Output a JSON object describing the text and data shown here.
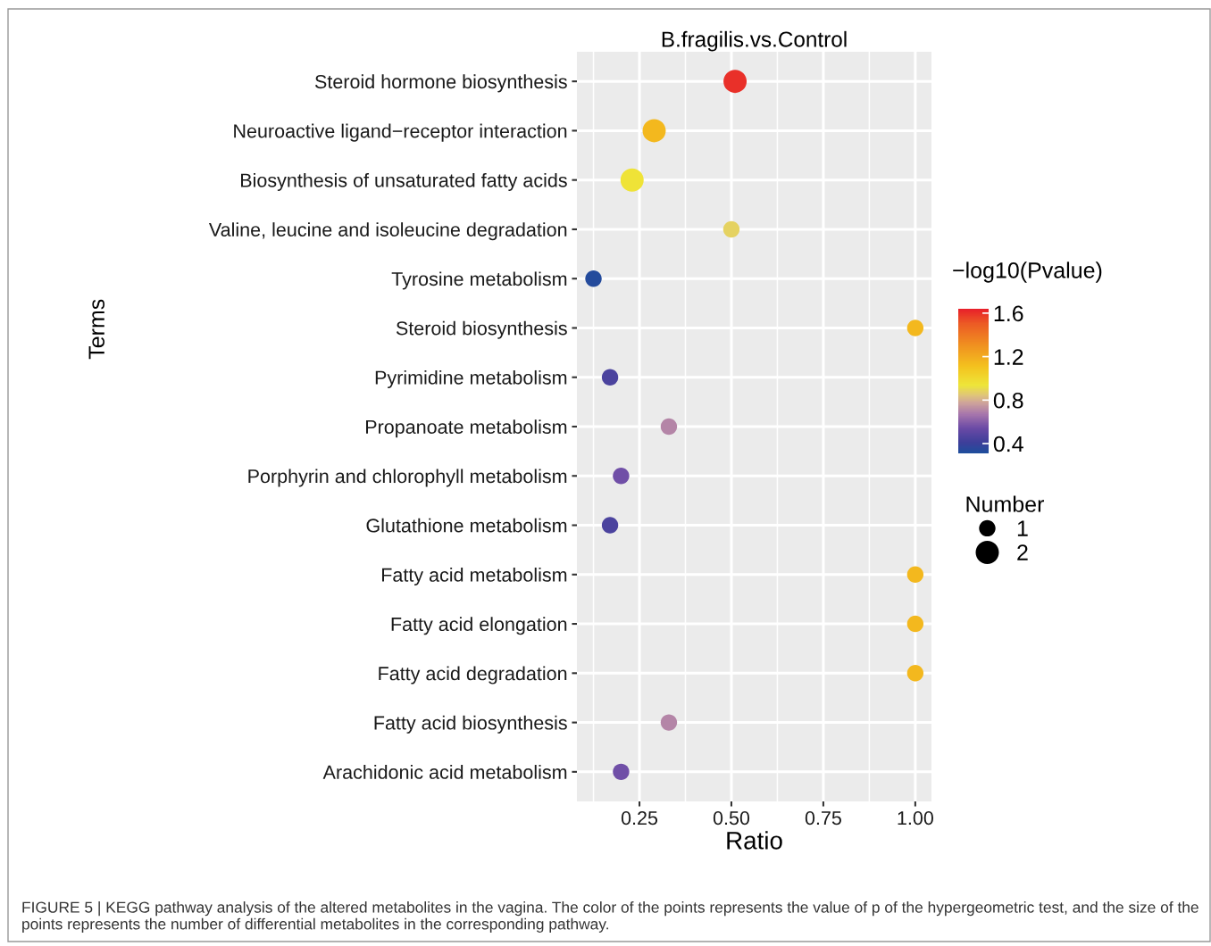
{
  "chart_data": {
    "type": "bubble",
    "orientation": "horizontal",
    "title": "B.fragilis.vs.Control",
    "xlabel": "Ratio",
    "ylabel": "Terms",
    "clabel": "−log10(Pvalue)",
    "legend_title": "Number",
    "categories": [
      "Steroid hormone biosynthesis",
      "Neuroactive ligand−receptor interaction",
      "Biosynthesis of unsaturated fatty acids",
      "Valine, leucine and isoleucine degradation",
      "Tyrosine metabolism",
      "Steroid biosynthesis",
      "Pyrimidine metabolism",
      "Propanoate metabolism",
      "Porphyrin and chlorophyll metabolism",
      "Glutathione metabolism",
      "Fatty acid metabolism",
      "Fatty acid elongation",
      "Fatty acid degradation",
      "Fatty acid biosynthesis",
      "Arachidonic acid metabolism"
    ],
    "values": [
      0.51,
      0.29,
      0.23,
      0.5,
      0.125,
      1.0,
      0.17,
      0.33,
      0.2,
      0.17,
      1.0,
      1.0,
      1.0,
      0.33,
      0.2
    ],
    "sizes": [
      2,
      2,
      2,
      1,
      1,
      1,
      1,
      1,
      1,
      1,
      1,
      1,
      1,
      1,
      1
    ],
    "cvalues": [
      1.6,
      1.15,
      0.95,
      0.88,
      0.33,
      1.15,
      0.45,
      0.7,
      0.55,
      0.45,
      1.15,
      1.15,
      1.15,
      0.7,
      0.55
    ],
    "size_legend": [
      1,
      2
    ],
    "xlim": [
      0.08,
      1.044
    ],
    "xticks": [
      {
        "value": 0.25,
        "label": "0.25"
      },
      {
        "value": 0.5,
        "label": "0.50"
      },
      {
        "value": 0.75,
        "label": "0.75"
      },
      {
        "value": 1.0,
        "label": "1.00"
      }
    ],
    "clim": [
      0.31,
      1.64
    ],
    "cticks": [
      0.4,
      0.8,
      1.2,
      1.6
    ],
    "grid": true,
    "annotations": [
      "FIGURE 5 | KEGG pathway analysis of the altered metabolites in the vagina. The color of the points represents the value of p of the hypergeometric test, and the size of the points represents the number of differential metabolites in the corresponding pathway."
    ]
  }
}
